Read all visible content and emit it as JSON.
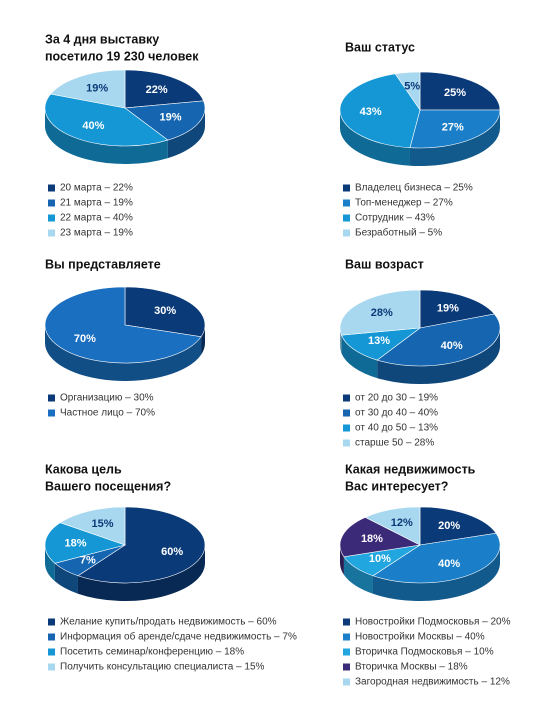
{
  "chart_data": [
    {
      "type": "pie",
      "title": [
        "За 4 дня выставку",
        "посетило 19 230 человек"
      ],
      "categories": [
        "20 марта – 22%",
        "21 марта – 19%",
        "22 марта – 40%",
        "23 марта – 19%"
      ],
      "values": [
        22,
        19,
        40,
        19
      ],
      "value_labels": [
        "22%",
        "19%",
        "40%",
        "19%"
      ],
      "colors": [
        "#0b3a78",
        "#1565b0",
        "#1597d6",
        "#a8d8f0"
      ]
    },
    {
      "type": "pie",
      "title": [
        "Ваш статус"
      ],
      "categories": [
        "Владелец бизнеса – 25%",
        "Топ-менеджер – 27%",
        "Сотрудник – 43%",
        "Безработный – 5%"
      ],
      "values": [
        25,
        27,
        43,
        5
      ],
      "value_labels": [
        "25%",
        "27%",
        "43%",
        "5%"
      ],
      "colors": [
        "#0b3a78",
        "#1a7fc8",
        "#1597d6",
        "#a8d8f0"
      ]
    },
    {
      "type": "pie",
      "title": [
        "Вы представляете"
      ],
      "categories": [
        "Организацию – 30%",
        "Частное лицо – 70%"
      ],
      "values": [
        30,
        70
      ],
      "value_labels": [
        "30%",
        "70%"
      ],
      "colors": [
        "#0b3a78",
        "#1a6fc0"
      ]
    },
    {
      "type": "pie",
      "title": [
        "Ваш возраст"
      ],
      "categories": [
        "от 20 до 30 – 19%",
        "от 30 до 40 – 40%",
        "от 40 до 50 – 13%",
        "старше 50 – 28%"
      ],
      "values": [
        19,
        40,
        13,
        28
      ],
      "value_labels": [
        "19%",
        "40%",
        "13%",
        "28%"
      ],
      "colors": [
        "#0b3a78",
        "#1565b0",
        "#1597d6",
        "#a8d8f0"
      ]
    },
    {
      "type": "pie",
      "title": [
        "Какова цель",
        "Вашего посещения?"
      ],
      "categories": [
        "Желание купить/продать недвижимость – 60%",
        "Информация об аренде/сдаче недвижимость – 7%",
        "Посетить семинар/конференцию – 18%",
        "Получить консультацию специалиста – 15%"
      ],
      "values": [
        60,
        7,
        18,
        15
      ],
      "value_labels": [
        "60%",
        "7%",
        "18%",
        "15%"
      ],
      "colors": [
        "#0b3a78",
        "#1565b0",
        "#1597d6",
        "#a8d8f0"
      ]
    },
    {
      "type": "pie",
      "title": [
        "Какая недвижимость",
        "Вас интересует?"
      ],
      "categories": [
        "Новостройки Подмосковья – 20%",
        "Новостройки Москвы – 40%",
        "Вторичка Подмосковья – 10%",
        "Вторичка Москвы – 18%",
        "Загородная недвижимость – 12%"
      ],
      "values": [
        20,
        40,
        10,
        18,
        12
      ],
      "value_labels": [
        "20%",
        "40%",
        "10%",
        "18%",
        "12%"
      ],
      "colors": [
        "#0b3a78",
        "#1a7fc8",
        "#22a6e0",
        "#3b2a78",
        "#a8d8f0"
      ]
    }
  ]
}
